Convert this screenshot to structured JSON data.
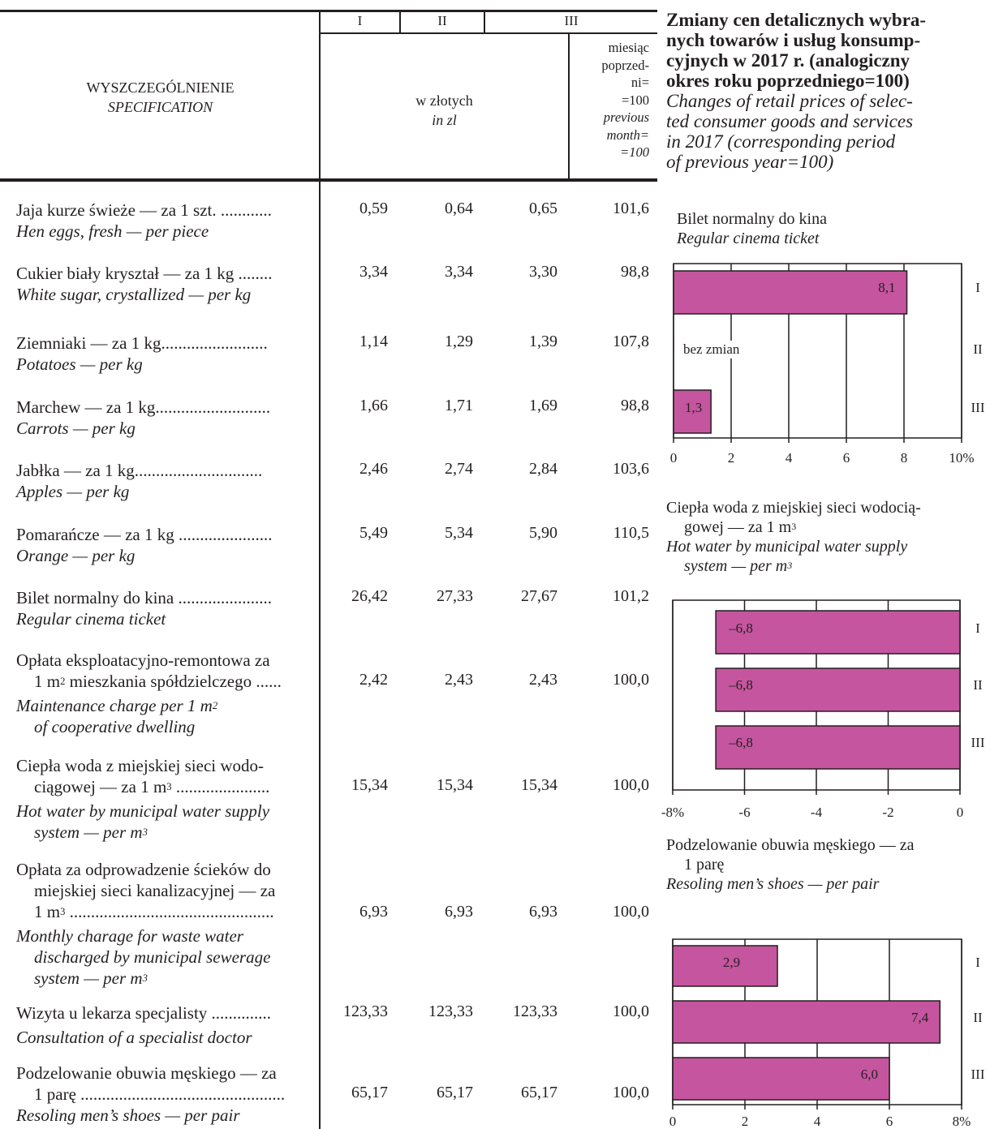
{
  "table": {
    "headers": {
      "col_i": "I",
      "col_ii": "II",
      "col_iii": "III",
      "spec_pl": "WYSZCZEGÓLNIENIE",
      "spec_en": "SPECIFICATION",
      "zl_pl": "w złotych",
      "zl_en": "in zl",
      "month_pl": [
        "miesiąc",
        "poprzed-",
        "ni=",
        "=100"
      ],
      "month_en": [
        "previous",
        "month=",
        "=100"
      ]
    },
    "rows": [
      {
        "pl": [
          "Jaja kurze świeże — za 1 szt. ............"
        ],
        "en": [
          "Hen eggs, fresh — per piece"
        ],
        "values": [
          "0,59",
          "0,64",
          "0,65",
          "101,6"
        ]
      },
      {
        "pl": [
          "Cukier biały kryształ — za 1 kg ........"
        ],
        "en": [
          "White sugar, crystallized — per kg"
        ],
        "values": [
          "3,34",
          "3,34",
          "3,30",
          "98,8"
        ]
      },
      {
        "pl": [
          "Ziemniaki — za 1 kg........................."
        ],
        "en": [
          "Potatoes — per kg"
        ],
        "values": [
          "1,14",
          "1,29",
          "1,39",
          "107,8"
        ]
      },
      {
        "pl": [
          "Marchew — za 1 kg..........................."
        ],
        "en": [
          "Carrots — per kg"
        ],
        "values": [
          "1,66",
          "1,71",
          "1,69",
          "98,8"
        ]
      },
      {
        "pl": [
          "Jabłka — za 1 kg.............................."
        ],
        "en": [
          "Apples — per kg"
        ],
        "values": [
          "2,46",
          "2,74",
          "2,84",
          "103,6"
        ]
      },
      {
        "pl": [
          "Pomarańcze — za 1 kg ......................"
        ],
        "en": [
          "Orange — per kg"
        ],
        "values": [
          "5,49",
          "5,34",
          "5,90",
          "110,5"
        ]
      },
      {
        "pl": [
          "Bilet normalny do kina ......................"
        ],
        "en": [
          "Regular cinema ticket"
        ],
        "values": [
          "26,42",
          "27,33",
          "27,67",
          "101,2"
        ]
      },
      {
        "pl": [
          "Opłata eksploatacyjno-remontowa za",
          "1 m² mieszkania spółdzielczego ......"
        ],
        "en": [
          "Maintenance charge per 1 m²",
          "of  cooperative dwelling"
        ],
        "values": [
          "2,42",
          "2,43",
          "2,43",
          "100,0"
        ]
      },
      {
        "pl": [
          "Ciepła woda z miejskiej sieci wodo-",
          "ciągowej — za 1 m³ ......................"
        ],
        "en": [
          "Hot water by municipal water supply",
          "system — per m³"
        ],
        "values": [
          "15,34",
          "15,34",
          "15,34",
          "100,0"
        ]
      },
      {
        "pl": [
          "Opłata za odprowadzenie ścieków do",
          "miejskiej sieci kanalizacyjnej — za",
          "1 m³ ................................................"
        ],
        "en": [
          "Monthly charage for waste water",
          "discharged by municipal sewerage",
          "system — per m³"
        ],
        "values": [
          "6,93",
          "6,93",
          "6,93",
          "100,0"
        ]
      },
      {
        "pl": [
          "Wizyta u lekarza specjalisty .............."
        ],
        "en": [
          "Consultation of a specialist doctor"
        ],
        "values": [
          "123,33",
          "123,33",
          "123,33",
          "100,0"
        ]
      },
      {
        "pl": [
          "Podzelowanie obuwia męskiego — za",
          "1 parę ................................................"
        ],
        "en": [
          "Resoling men’s shoes — per pair"
        ],
        "values": [
          "65,17",
          "65,17",
          "65,17",
          "100,0"
        ]
      }
    ]
  },
  "panel": {
    "title_pl": [
      "Zmiany cen detalicznych wybra-",
      "nych towarów i usług konsump-",
      "cyjnych w 2017 r. (analogiczny",
      "okres roku poprzedniego=100)"
    ],
    "title_en": [
      "Changes of retail prices of selec-",
      "ted consumer goods and services",
      "in 2017 (corresponding period",
      "of previous year=100)"
    ]
  },
  "chart_data": [
    {
      "type": "bar",
      "orientation": "horizontal",
      "title_pl": [
        "Bilet normalny do kina"
      ],
      "title_en": [
        "Regular cinema ticket"
      ],
      "categories": [
        "I",
        "II",
        "III"
      ],
      "values": [
        8.1,
        0,
        1.3
      ],
      "value_labels": [
        "8,1",
        "bez zmian",
        "1,3"
      ],
      "xlim": [
        0,
        10
      ],
      "ticks": [
        "0",
        "2",
        "4",
        "6",
        "8",
        "10%"
      ],
      "tick_values": [
        0,
        2,
        4,
        6,
        8,
        10
      ],
      "grid": true,
      "bar_color": "#c5559e"
    },
    {
      "type": "bar",
      "orientation": "horizontal",
      "title_pl": [
        "Ciepła woda z miejskiej sieci wodocią-",
        "gowej — za 1 m³"
      ],
      "title_en": [
        "Hot water by municipal water supply",
        "system — per m³"
      ],
      "categories": [
        "I",
        "II",
        "III"
      ],
      "values": [
        -6.8,
        -6.8,
        -6.8
      ],
      "value_labels": [
        "–6,8",
        "–6,8",
        "–6,8"
      ],
      "xlim": [
        -8,
        0
      ],
      "ticks": [
        "-8%",
        "-6",
        "-4",
        "-2",
        "0"
      ],
      "tick_values": [
        -8,
        -6,
        -4,
        -2,
        0
      ],
      "grid": true,
      "bar_color": "#c5559e"
    },
    {
      "type": "bar",
      "orientation": "horizontal",
      "title_pl": [
        "Podzelowanie obuwia męskiego — za",
        "1 parę"
      ],
      "title_en": [
        "Resoling men’s shoes — per pair"
      ],
      "categories": [
        "I",
        "II",
        "III"
      ],
      "values": [
        2.9,
        7.4,
        6.0
      ],
      "value_labels": [
        "2,9",
        "7,4",
        "6,0"
      ],
      "xlim": [
        0,
        8
      ],
      "ticks": [
        "0",
        "2",
        "4",
        "6",
        "8%"
      ],
      "tick_values": [
        0,
        2,
        4,
        6,
        8
      ],
      "grid": true,
      "bar_color": "#c5559e"
    }
  ]
}
